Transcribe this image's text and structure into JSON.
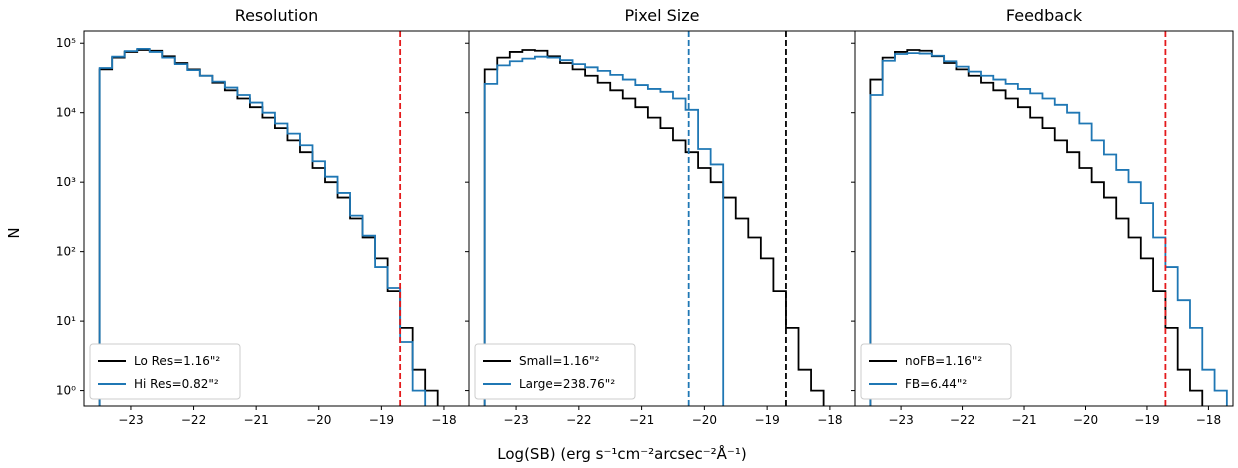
{
  "figure": {
    "ylabel": "N",
    "xlabel": "Log(SB) (erg s⁻¹cm⁻²arcsec⁻²Å⁻¹)"
  },
  "chart_data": [
    {
      "type": "histogram-step",
      "title": "Resolution",
      "yscale": "log",
      "ylim": [
        0.6,
        150000
      ],
      "xlim": [
        -23.75,
        -17.6
      ],
      "xticks": [
        -23,
        -22,
        -21,
        -20,
        -19,
        -18
      ],
      "yticks": [
        1,
        10,
        100,
        1000,
        10000,
        100000
      ],
      "bin_width": 0.2,
      "legend_position": "lower-left",
      "vlines": [
        {
          "x": -18.7,
          "color": "#e41a1c",
          "style": "dashed"
        }
      ],
      "series": [
        {
          "name": "Lo Res=1.16\"²",
          "color": "#000000",
          "start": -23.5,
          "values": [
            42000,
            62000,
            75000,
            80000,
            78000,
            65000,
            52000,
            42000,
            34000,
            27000,
            21000,
            16000,
            12000,
            8500,
            6000,
            4000,
            2700,
            1600,
            1000,
            600,
            300,
            160,
            80,
            27,
            8,
            2,
            1
          ]
        },
        {
          "name": "Hi Res=0.82\"²",
          "color": "#1f77b4",
          "start": -23.5,
          "values": [
            44000,
            64000,
            77000,
            83000,
            75000,
            62000,
            50000,
            41000,
            34000,
            28000,
            23000,
            18000,
            14000,
            10000,
            7000,
            5000,
            3400,
            2000,
            1200,
            700,
            330,
            170,
            60,
            30,
            5,
            1
          ]
        }
      ]
    },
    {
      "type": "histogram-step",
      "title": "Pixel Size",
      "yscale": "log",
      "ylim": [
        0.6,
        150000
      ],
      "xlim": [
        -23.75,
        -17.6
      ],
      "xticks": [
        -23,
        -22,
        -21,
        -20,
        -19,
        -18
      ],
      "yticks": [
        1,
        10,
        100,
        1000,
        10000,
        100000
      ],
      "bin_width": 0.2,
      "legend_position": "lower-left",
      "vlines": [
        {
          "x": -20.25,
          "color": "#1f77b4",
          "style": "dashed"
        },
        {
          "x": -18.7,
          "color": "#000000",
          "style": "dashed"
        }
      ],
      "series": [
        {
          "name": "Small=1.16\"²",
          "color": "#000000",
          "start": -23.5,
          "values": [
            42000,
            62000,
            75000,
            80000,
            78000,
            65000,
            52000,
            42000,
            34000,
            27000,
            21000,
            16000,
            12000,
            8500,
            6000,
            4000,
            2700,
            1600,
            1000,
            600,
            300,
            160,
            80,
            27,
            8,
            2,
            1
          ]
        },
        {
          "name": "Large=238.76\"²",
          "color": "#1f77b4",
          "start": -23.5,
          "values": [
            26000,
            48000,
            55000,
            60000,
            64000,
            62000,
            57000,
            50000,
            45000,
            40000,
            35000,
            30000,
            25000,
            22000,
            20000,
            16000,
            11000,
            3000,
            1800
          ]
        }
      ]
    },
    {
      "type": "histogram-step",
      "title": "Feedback",
      "yscale": "log",
      "ylim": [
        0.6,
        150000
      ],
      "xlim": [
        -23.75,
        -17.6
      ],
      "xticks": [
        -23,
        -22,
        -21,
        -20,
        -19,
        -18
      ],
      "yticks": [
        1,
        10,
        100,
        1000,
        10000,
        100000
      ],
      "bin_width": 0.2,
      "legend_position": "lower-left",
      "vlines": [
        {
          "x": -18.7,
          "color": "#e41a1c",
          "style": "dashed"
        }
      ],
      "series": [
        {
          "name": "noFB=1.16\"²",
          "color": "#000000",
          "start": -23.5,
          "values": [
            30000,
            62000,
            75000,
            80000,
            78000,
            65000,
            52000,
            42000,
            34000,
            27000,
            21000,
            16000,
            12000,
            8500,
            6000,
            4000,
            2700,
            1600,
            1000,
            600,
            300,
            160,
            80,
            27,
            8,
            2,
            1
          ]
        },
        {
          "name": "FB=6.44\"²",
          "color": "#1f77b4",
          "start": -23.5,
          "values": [
            18000,
            56000,
            70000,
            72000,
            71000,
            66000,
            55000,
            46000,
            39000,
            34000,
            30000,
            26000,
            22000,
            19000,
            16000,
            13000,
            10000,
            7000,
            4000,
            2500,
            1500,
            1000,
            500,
            160,
            60,
            20,
            8,
            2,
            1
          ]
        }
      ]
    }
  ]
}
